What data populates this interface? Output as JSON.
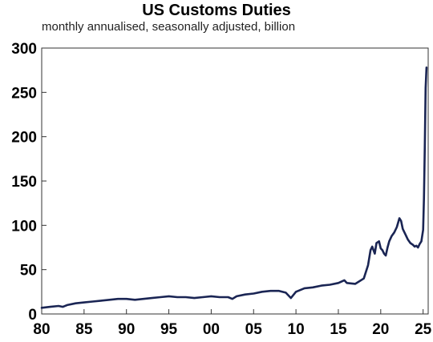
{
  "chart_data": {
    "type": "line",
    "title": "US Customs Duties",
    "subtitle": "monthly annualised, seasonally adjusted, billion",
    "xlabel": "",
    "ylabel": "",
    "xlim": [
      1980,
      2025.6
    ],
    "ylim": [
      0,
      300
    ],
    "y_ticks": [
      0,
      50,
      100,
      150,
      200,
      250,
      300
    ],
    "x_ticks": [
      {
        "value": 1980,
        "label": "80"
      },
      {
        "value": 1985,
        "label": "85"
      },
      {
        "value": 1990,
        "label": "90"
      },
      {
        "value": 1995,
        "label": "95"
      },
      {
        "value": 2000,
        "label": "00"
      },
      {
        "value": 2005,
        "label": "05"
      },
      {
        "value": 2010,
        "label": "10"
      },
      {
        "value": 2015,
        "label": "15"
      },
      {
        "value": 2020,
        "label": "20"
      },
      {
        "value": 2025,
        "label": "25"
      }
    ],
    "grid": false,
    "line_color": "#1a2554",
    "series": [
      {
        "name": "",
        "x": [
          1980.0,
          1981.0,
          1982.0,
          1982.5,
          1983.0,
          1984.0,
          1985.0,
          1986.0,
          1987.0,
          1988.0,
          1989.0,
          1990.0,
          1991.0,
          1992.0,
          1993.0,
          1994.0,
          1995.0,
          1996.0,
          1997.0,
          1998.0,
          1999.0,
          2000.0,
          2001.0,
          2002.0,
          2002.5,
          2003.0,
          2004.0,
          2005.0,
          2006.0,
          2007.0,
          2008.0,
          2008.8,
          2009.4,
          2010.0,
          2011.0,
          2012.0,
          2013.0,
          2014.0,
          2015.0,
          2015.7,
          2016.0,
          2017.0,
          2018.0,
          2018.5,
          2018.8,
          2019.0,
          2019.3,
          2019.5,
          2019.8,
          2020.0,
          2020.2,
          2020.4,
          2020.6,
          2020.8,
          2021.0,
          2021.3,
          2021.6,
          2021.9,
          2022.2,
          2022.4,
          2022.6,
          2022.9,
          2023.2,
          2023.5,
          2023.8,
          2024.0,
          2024.2,
          2024.4,
          2024.6,
          2024.8,
          2025.0,
          2025.1,
          2025.2,
          2025.3,
          2025.4
        ],
        "values": [
          7,
          8,
          9,
          8,
          10,
          12,
          13,
          14,
          15,
          16,
          17,
          17,
          16,
          17,
          18,
          19,
          20,
          19,
          19,
          18,
          19,
          20,
          19,
          19,
          17,
          20,
          22,
          23,
          25,
          26,
          26,
          24,
          18,
          25,
          29,
          30,
          32,
          33,
          35,
          38,
          35,
          34,
          40,
          55,
          72,
          76,
          68,
          80,
          82,
          74,
          72,
          68,
          66,
          75,
          82,
          88,
          92,
          98,
          108,
          105,
          96,
          90,
          84,
          80,
          78,
          76,
          77,
          75,
          79,
          82,
          95,
          130,
          190,
          255,
          278
        ]
      }
    ]
  }
}
